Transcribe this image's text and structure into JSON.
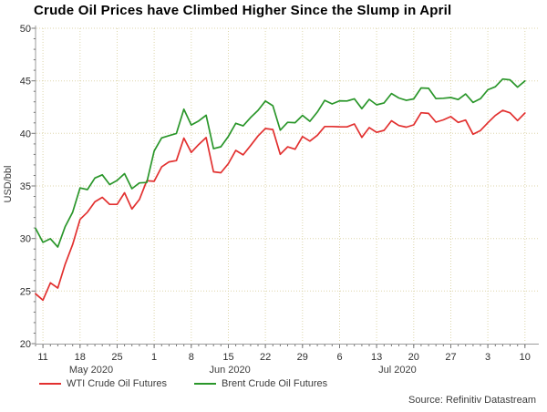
{
  "chart_data": {
    "type": "line",
    "title": "Crude Oil Prices have Climbed Higher Since the Slump in April",
    "source": "Source: Refinitiv Datastream",
    "ylabel": "USD/bbl",
    "ylim": [
      20,
      50
    ],
    "y_major_ticks": [
      20,
      25,
      30,
      35,
      40,
      45,
      50
    ],
    "y_minor_step": 1,
    "grid": "dotted horizontal at major y ticks and vertical at weekly x ticks",
    "legend_position": "bottom-left",
    "x": [
      "May 8",
      "May 11",
      "May 12",
      "May 13",
      "May 14",
      "May 15",
      "May 18",
      "May 19",
      "May 20",
      "May 21",
      "May 22",
      "May 25",
      "May 26",
      "May 27",
      "May 28",
      "May 29",
      "Jun 1",
      "Jun 2",
      "Jun 3",
      "Jun 4",
      "Jun 5",
      "Jun 8",
      "Jun 9",
      "Jun 10",
      "Jun 11",
      "Jun 12",
      "Jun 15",
      "Jun 16",
      "Jun 17",
      "Jun 18",
      "Jun 19",
      "Jun 22",
      "Jun 23",
      "Jun 24",
      "Jun 25",
      "Jun 26",
      "Jun 29",
      "Jun 30",
      "Jul 1",
      "Jul 2",
      "Jul 3",
      "Jul 6",
      "Jul 7",
      "Jul 8",
      "Jul 9",
      "Jul 10",
      "Jul 13",
      "Jul 14",
      "Jul 15",
      "Jul 16",
      "Jul 17",
      "Jul 20",
      "Jul 21",
      "Jul 22",
      "Jul 23",
      "Jul 24",
      "Jul 27",
      "Jul 28",
      "Jul 29",
      "Jul 30",
      "Jul 31",
      "Aug 3",
      "Aug 4",
      "Aug 5",
      "Aug 6",
      "Aug 7",
      "Aug 10"
    ],
    "x_week_ticks": [
      {
        "label": "11",
        "index": 1
      },
      {
        "label": "18",
        "index": 6
      },
      {
        "label": "25",
        "index": 11
      },
      {
        "label": "1",
        "index": 16
      },
      {
        "label": "8",
        "index": 21
      },
      {
        "label": "15",
        "index": 26
      },
      {
        "label": "22",
        "index": 31
      },
      {
        "label": "29",
        "index": 36
      },
      {
        "label": "6",
        "index": 41
      },
      {
        "label": "13",
        "index": 46
      },
      {
        "label": "20",
        "index": 51
      },
      {
        "label": "27",
        "index": 56
      },
      {
        "label": "3",
        "index": 61
      },
      {
        "label": "10",
        "index": 66
      }
    ],
    "x_month_labels": [
      {
        "label": "May 2020",
        "center_index": 7.5
      },
      {
        "label": "Jun 2020",
        "center_index": 26.2
      },
      {
        "label": "Jul 2020",
        "center_index": 48.8
      }
    ],
    "series": [
      {
        "id": "wti",
        "name": "WTI Crude Oil Futures",
        "color": "#e2302f",
        "values": [
          24.74,
          24.14,
          25.78,
          25.29,
          27.56,
          29.43,
          31.82,
          32.5,
          33.49,
          33.92,
          33.25,
          33.25,
          34.35,
          32.81,
          33.71,
          35.49,
          35.44,
          36.81,
          37.29,
          37.41,
          39.55,
          38.19,
          38.94,
          39.6,
          36.34,
          36.26,
          37.12,
          38.38,
          37.96,
          38.84,
          39.75,
          40.46,
          40.37,
          38.01,
          38.72,
          38.49,
          39.7,
          39.27,
          39.82,
          40.65,
          40.65,
          40.63,
          40.62,
          40.9,
          39.62,
          40.55,
          40.1,
          40.29,
          41.2,
          40.75,
          40.59,
          40.81,
          41.96,
          41.9,
          41.07,
          41.29,
          41.6,
          41.04,
          41.27,
          39.92,
          40.27,
          41.01,
          41.7,
          42.19,
          41.95,
          41.22,
          41.94
        ]
      },
      {
        "id": "brent",
        "name": "Brent Crude Oil Futures",
        "color": "#2a962a",
        "values": [
          30.97,
          29.63,
          29.98,
          29.19,
          31.13,
          32.5,
          34.81,
          34.65,
          35.75,
          36.06,
          35.13,
          35.53,
          36.17,
          34.74,
          35.29,
          35.33,
          38.32,
          39.57,
          39.79,
          39.99,
          42.3,
          40.8,
          41.18,
          41.73,
          38.55,
          38.73,
          39.72,
          40.96,
          40.71,
          41.51,
          42.19,
          43.08,
          42.63,
          40.31,
          41.05,
          41.02,
          41.71,
          41.15,
          42.03,
          43.14,
          42.8,
          43.1,
          43.08,
          43.29,
          42.35,
          43.24,
          42.72,
          42.9,
          43.79,
          43.37,
          43.14,
          43.28,
          44.32,
          44.29,
          43.31,
          43.34,
          43.41,
          43.22,
          43.75,
          42.94,
          43.3,
          44.15,
          44.43,
          45.17,
          45.09,
          44.4,
          44.99
        ]
      }
    ],
    "colors": {
      "grid": "#ddd6ab",
      "axis": "#9b9b9b",
      "tick": "#777777",
      "tick_text": "#2e2e2e",
      "label_text": "#3c3c3c",
      "title_text": "#000000"
    }
  }
}
